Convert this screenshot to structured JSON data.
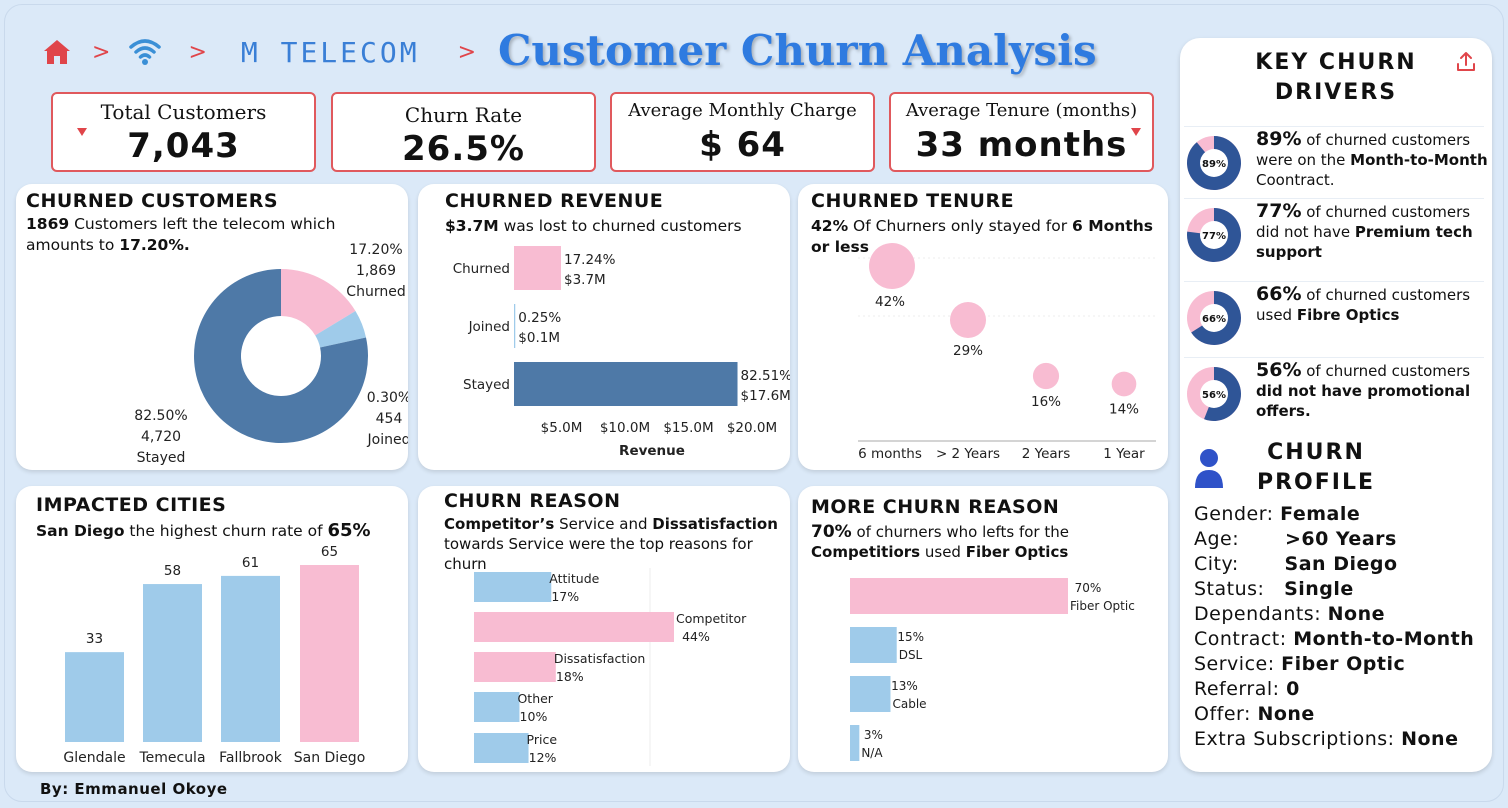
{
  "header": {
    "brand": "M TELECOM",
    "title": "Customer Churn Analysis",
    "sep": ">"
  },
  "kpis": [
    {
      "label": "Total Customers",
      "value": "7,043"
    },
    {
      "label": "Churn Rate",
      "value": "26.5%"
    },
    {
      "label": "Average Monthly Charge",
      "value": "$ 64"
    },
    {
      "label": "Average Tenure (months)",
      "value": "33 months"
    }
  ],
  "churned_customers": {
    "title": "CHURNED CUSTOMERS",
    "sub_bold1": "1869",
    "sub_text1": " Customers left the telecom which amounts to ",
    "sub_bold2": "17.20%."
  },
  "churned_revenue": {
    "title": "CHURNED REVENUE",
    "sub_bold": "$3.7M",
    "sub_text": " was lost to churned customers"
  },
  "churned_tenure": {
    "title": "CHURNED TENURE",
    "sub_bold1": "42%",
    "sub_text": " Of Churners only stayed for ",
    "sub_bold2": "6 Months or less"
  },
  "impacted_cities": {
    "title": "IMPACTED CITIES",
    "sub_bold1": "San Diego",
    "sub_text": " the highest churn rate  of ",
    "sub_bold2": "65%"
  },
  "churn_reason": {
    "title": "CHURN REASON",
    "sub_bold1": "Competitor’s",
    "sub_text1": " Service and ",
    "sub_bold2": "Dissatisfaction",
    "sub_text2": " towards Service were the top reasons for churn"
  },
  "more_churn_reason": {
    "title": "MORE CHURN REASON",
    "sub_bold1": "70%",
    "sub_text1": " of churners who lefts for the ",
    "sub_bold2": "Competitiors",
    "sub_text2": " used ",
    "sub_bold3": "Fiber Optics"
  },
  "key_drivers": {
    "title_line1": "KEY CHURN",
    "title_line2": "DRIVERS",
    "items": [
      {
        "pct": "89%",
        "text": " of churned customers were on the ",
        "bold": "Month-to-Month",
        "tail": " Coontract.",
        "ring": "89%",
        "value": 0.89
      },
      {
        "pct": "77%",
        "text": " of churned customers did not have ",
        "bold": "Premium tech support",
        "tail": "",
        "ring": "77%",
        "value": 0.77
      },
      {
        "pct": "66%",
        "text": " of churned customers used  ",
        "bold": "Fibre Optics",
        "tail": "",
        "ring": "66%",
        "value": 0.66
      },
      {
        "pct": "56%",
        "text": " of churned customers ",
        "bold": "did not have promotional offers.",
        "tail": "",
        "ring": "56%",
        "value": 0.56
      }
    ]
  },
  "churn_profile": {
    "title_line1": "CHURN",
    "title_line2": "PROFILE",
    "rows": [
      {
        "k": "Gender: ",
        "v": "Female"
      },
      {
        "k": "Age:       ",
        "v": ">60 Years"
      },
      {
        "k": "City:       ",
        "v": "San Diego"
      },
      {
        "k": "Status:   ",
        "v": "Single"
      },
      {
        "k": "Dependants: ",
        "v": "None"
      },
      {
        "k": "Contract: ",
        "v": "Month-to-Month"
      },
      {
        "k": "Service: ",
        "v": "Fiber Optic"
      },
      {
        "k": "Referral: ",
        "v": "0"
      },
      {
        "k": "Offer: ",
        "v": "None"
      },
      {
        "k": "Extra Subscriptions: ",
        "v": "None"
      }
    ]
  },
  "byline": "By: Emmanuel Okoye",
  "colors": {
    "pink": "#f8bcd2",
    "blue": "#4e79a7",
    "lightblue": "#9fcbea",
    "red": "#e0454a",
    "accent": "#2f7be0"
  },
  "chart_data": [
    {
      "type": "pie",
      "id": "churned_customers_donut",
      "slices": [
        {
          "name": "Churned",
          "value": 17.2,
          "count": "1,869",
          "pct_label": "17.20%"
        },
        {
          "name": "Joined",
          "value": 0.3,
          "count": "454",
          "pct_label": "0.30%"
        },
        {
          "name": "Stayed",
          "value": 82.5,
          "count": "4,720",
          "pct_label": "82.50%"
        }
      ]
    },
    {
      "type": "bar",
      "id": "churned_revenue",
      "orientation": "horizontal",
      "categories": [
        "Churned",
        "Joined",
        "Stayed"
      ],
      "values": [
        3.7,
        0.1,
        17.6
      ],
      "pct_labels": [
        "17.24%",
        "0.25%",
        "82.51%"
      ],
      "value_labels": [
        "$3.7M",
        "$0.1M",
        "$17.6M"
      ],
      "xlabel": "Revenue",
      "xticks": [
        "$5.0M",
        "$10.0M",
        "$15.0M",
        "$20.0M"
      ],
      "xtick_values": [
        5,
        10,
        15,
        20
      ]
    },
    {
      "type": "scatter",
      "id": "churned_tenure",
      "categories": [
        "6 months",
        "> 2 Years",
        "2 Years",
        "1 Year"
      ],
      "values": [
        42,
        29,
        16,
        14
      ],
      "labels": [
        "42%",
        "29%",
        "16%",
        "14%"
      ]
    },
    {
      "type": "bar",
      "id": "impacted_cities",
      "categories": [
        "Glendale",
        "Temecula",
        "Fallbrook",
        "San Diego"
      ],
      "values": [
        33,
        58,
        61,
        65
      ],
      "labels": [
        "33",
        "58",
        "61",
        "65"
      ]
    },
    {
      "type": "bar",
      "id": "churn_reason",
      "orientation": "horizontal",
      "categories": [
        "Attitude",
        "Competitor",
        "Dissatisfaction",
        "Other",
        "Price"
      ],
      "values": [
        17,
        44,
        18,
        10,
        12
      ],
      "labels": [
        "17%",
        "44%",
        "18%",
        "10%",
        "12%"
      ]
    },
    {
      "type": "bar",
      "id": "more_churn_reason",
      "orientation": "horizontal",
      "categories": [
        "Fiber Optic",
        "DSL",
        "Cable",
        "N/A"
      ],
      "values": [
        70,
        15,
        13,
        3
      ],
      "labels": [
        "70%",
        "15%",
        "13%",
        "3%"
      ]
    }
  ]
}
